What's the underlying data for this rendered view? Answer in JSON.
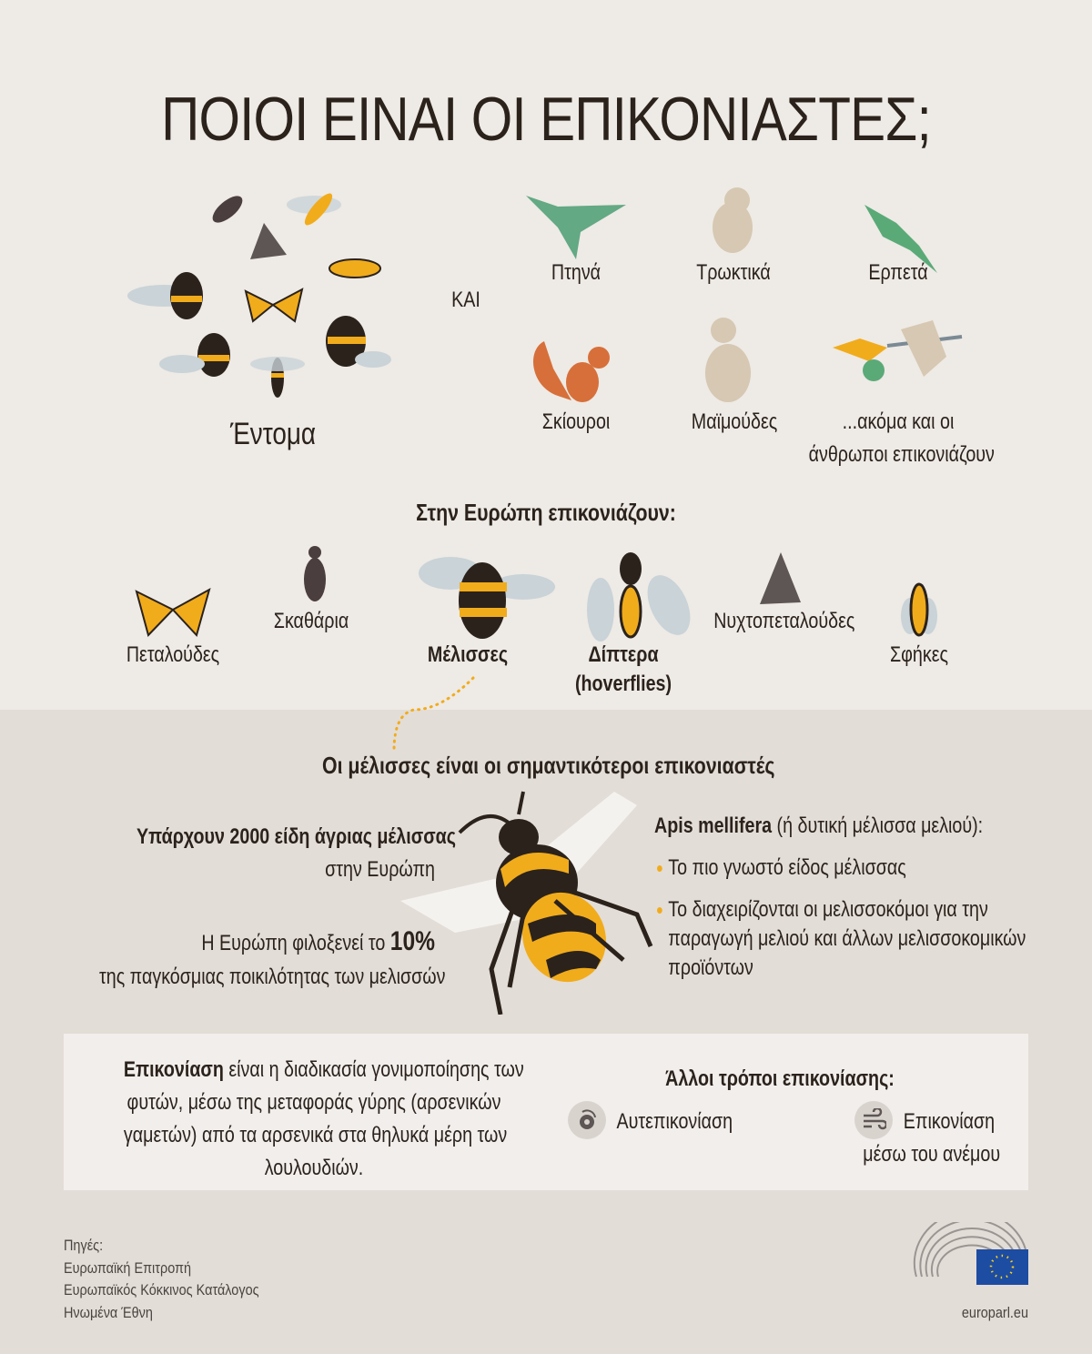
{
  "title": "ΠΟΙΟΙ ΕΙΝΑΙ ΟΙ ΕΠΙΚΟΝΙΑΣΤΕΣ;",
  "insects_label": "Έντομα",
  "and_label": "ΚΑΙ",
  "others": [
    {
      "label": "Πτηνά",
      "icon": "hummingbird-icon"
    },
    {
      "label": "Τρωκτικά",
      "icon": "mouse-icon"
    },
    {
      "label": "Ερπετά",
      "icon": "lizard-icon"
    },
    {
      "label": "Σκίουροι",
      "icon": "squirrel-icon"
    },
    {
      "label": "Μαϊμούδες",
      "icon": "monkey-icon"
    },
    {
      "label": "...ακόμα και οι",
      "label2": "άνθρωποι επικονιάζουν",
      "icon": "hand-brush-flower-icon"
    }
  ],
  "europe": {
    "heading": "Στην Ευρώπη επικονιάζουν:",
    "items": [
      {
        "label": "Πεταλούδες"
      },
      {
        "label": "Σκαθάρια"
      },
      {
        "label": "Μέλισσες"
      },
      {
        "label": "Δίπτερα",
        "label2": "(hoverflies)"
      },
      {
        "label": "Νυχτοπεταλούδες"
      },
      {
        "label": "Σφήκες"
      }
    ]
  },
  "bees": {
    "heading": "Οι μέλισσες είναι οι σημαντικότεροι επικονιαστές",
    "left1_bold": "Υπάρχουν 2000 είδη άγριας μέλισσας",
    "left1_rest": "στην Ευρώπη",
    "left2_pre": "Η Ευρώπη φιλοξενεί το ",
    "left2_bold": "10%",
    "left2_rest": "της παγκόσμιας ποικιλότητας των μελισσών",
    "right_bold": "Apis mellifera",
    "right_rest": " (ή δυτική μέλισσα μελιού):",
    "bullets": [
      [
        "Το πιο γνωστό είδος μέλισσας"
      ],
      [
        "Το διαχειρίζονται  οι μελισσοκόμοι για την",
        "παραγωγή μελιού και άλλων μελισσοκομικών",
        "προϊόντων"
      ]
    ]
  },
  "definition": {
    "bold": "Επικονίαση",
    "lines": [
      " είναι η διαδικασία γονιμοποίησης των",
      "φυτών, μέσω της μεταφοράς γύρης (αρσενικών",
      "γαμετών) από τα αρσενικά στα  θηλυκά μέρη των",
      "λουλουδιών."
    ]
  },
  "other_ways": {
    "heading": "Άλλοι τρόποι επικονίασης:",
    "self": "Αυτεπικονίαση",
    "wind1": "Επικονίαση",
    "wind2": "μέσω του ανέμου"
  },
  "sources": [
    "Πηγές:",
    "Ευρωπαϊκή Επιτροπή",
    "Ευρωπαϊκός Κόκκινος Κατάλογος",
    "Ηνωμένα Έθνη"
  ],
  "site": "europarl.eu",
  "colors": {
    "yellow": "#f1ac1c",
    "dark": "#2b221c",
    "eu_blue": "#1d4ca3"
  }
}
